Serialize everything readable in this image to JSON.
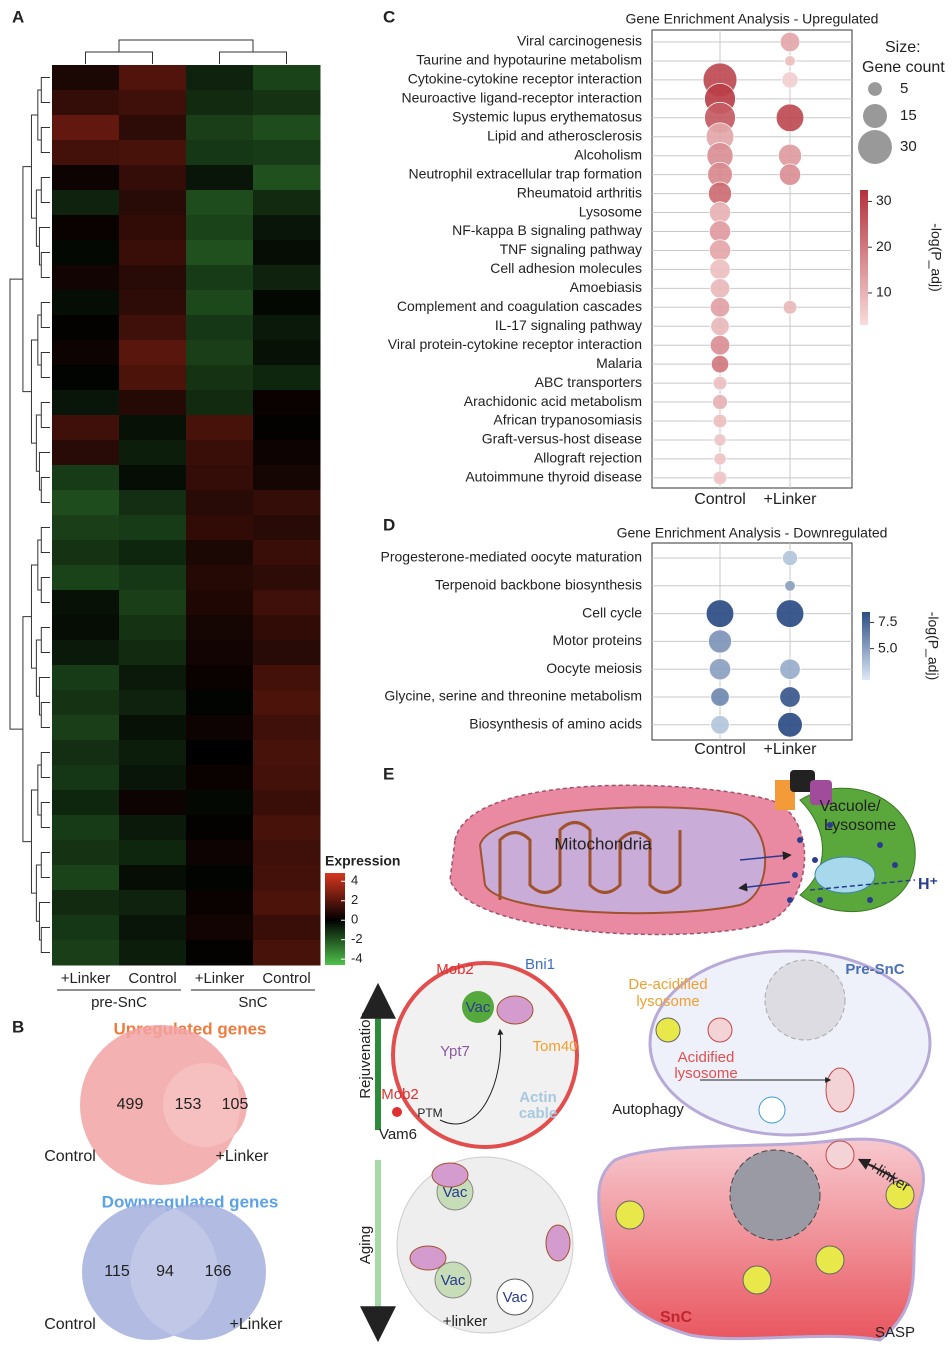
{
  "panel_labels": [
    "A",
    "B",
    "C",
    "D",
    "E"
  ],
  "chart_data": [
    {
      "type": "heatmap",
      "columns": [
        "+Linker",
        "Control",
        "+Linker",
        "Control"
      ],
      "groups": [
        "pre-SnC",
        "SnC"
      ],
      "legend_title": "Expression",
      "zlim": [
        -4.6,
        4.85
      ],
      "zticks": [
        4,
        2,
        0,
        -2,
        -4
      ],
      "colormap": [
        "#4fc24a",
        "#000000",
        "#d8361f"
      ],
      "values": [
        [
          0.6,
          1.8,
          -0.8,
          -1.6
        ],
        [
          1.2,
          1.4,
          -1.0,
          -1.2
        ],
        [
          2.2,
          1.0,
          -1.5,
          -1.8
        ],
        [
          1.5,
          1.6,
          -1.3,
          -1.4
        ],
        [
          0.3,
          1.2,
          -0.5,
          -1.9
        ],
        [
          -0.8,
          0.9,
          -1.8,
          -1.0
        ],
        [
          0.2,
          1.1,
          -1.6,
          -0.5
        ],
        [
          -0.2,
          1.3,
          -1.9,
          -0.3
        ],
        [
          0.4,
          0.9,
          -1.4,
          -0.8
        ],
        [
          -0.3,
          1.0,
          -1.7,
          -0.2
        ],
        [
          0.1,
          1.4,
          -1.3,
          -0.6
        ],
        [
          0.3,
          2.0,
          -1.5,
          -0.4
        ],
        [
          -0.1,
          1.7,
          -1.2,
          -0.9
        ],
        [
          -0.5,
          0.8,
          -1.0,
          0.2
        ],
        [
          1.4,
          -0.4,
          1.6,
          0.1
        ],
        [
          0.9,
          -0.7,
          1.3,
          0.3
        ],
        [
          -1.4,
          -0.3,
          1.2,
          0.5
        ],
        [
          -1.8,
          -1.1,
          0.9,
          1.2
        ],
        [
          -1.5,
          -1.4,
          1.1,
          0.9
        ],
        [
          -1.2,
          -0.9,
          0.6,
          1.3
        ],
        [
          -1.6,
          -1.3,
          0.8,
          1.0
        ],
        [
          -0.4,
          -1.5,
          0.7,
          1.4
        ],
        [
          -0.3,
          -1.2,
          0.5,
          1.1
        ],
        [
          -0.6,
          -1.0,
          0.4,
          0.9
        ],
        [
          -1.4,
          -0.6,
          0.2,
          1.5
        ],
        [
          -1.2,
          -0.8,
          -0.1,
          1.7
        ],
        [
          -1.5,
          -0.4,
          0.3,
          1.4
        ],
        [
          -1.1,
          -0.7,
          0.0,
          1.6
        ],
        [
          -1.3,
          -0.5,
          0.2,
          1.5
        ],
        [
          -0.9,
          0.3,
          -0.2,
          1.3
        ],
        [
          -1.4,
          -0.6,
          0.1,
          1.6
        ],
        [
          -1.2,
          -0.9,
          0.3,
          1.4
        ],
        [
          -1.6,
          -0.3,
          -0.1,
          1.5
        ],
        [
          -1.0,
          -0.8,
          0.2,
          1.7
        ],
        [
          -1.3,
          -0.5,
          0.4,
          1.3
        ],
        [
          -1.5,
          -0.7,
          0.1,
          1.6
        ]
      ]
    },
    {
      "type": "venn",
      "title": "Upregulated genes",
      "sets": [
        "Control",
        "+Linker"
      ],
      "values": [
        499,
        153,
        105
      ],
      "color": "#f2a3a3",
      "title_color": "#f07b3f"
    },
    {
      "type": "venn",
      "title": "Downregulated genes",
      "sets": [
        "Control",
        "+Linker"
      ],
      "values": [
        115,
        94,
        166
      ],
      "color": "#a4afdc",
      "title_color": "#5ba2e8"
    },
    {
      "type": "dot",
      "title": "Gene Enrichment Analysis - Upregulated",
      "categories": [
        "Viral carcinogenesis",
        "Taurine and hypotaurine metabolism",
        "Cytokine-cytokine receptor interaction",
        "Neuroactive ligand-receptor interaction",
        "Systemic lupus erythematosus",
        "Lipid and atherosclerosis",
        "Alcoholism",
        "Neutrophil extracellular trap formation",
        "Rheumatoid arthritis",
        "Lysosome",
        "NF-kappa B signaling pathway",
        "TNF signaling pathway",
        "Cell adhesion molecules",
        "Amoebiasis",
        "Complement and coagulation cascades",
        "IL-17 signaling pathway",
        "Viral protein-cytokine receptor interaction",
        "Malaria",
        "ABC transporters",
        "Arachidonic acid metabolism",
        "African trypanosomiasis",
        "Graft-versus-host disease",
        "Allograft rejection",
        "Autoimmune thyroid disease"
      ],
      "series": [
        {
          "name": "Control",
          "values": [
            null,
            null,
            28,
            30,
            25,
            12,
            16,
            17,
            22,
            10,
            14,
            12,
            8,
            9,
            13,
            9,
            16,
            20,
            8,
            10,
            8,
            7,
            7,
            7
          ],
          "sizes": [
            null,
            null,
            30,
            25,
            25,
            20,
            18,
            16,
            14,
            12,
            12,
            12,
            11,
            10,
            10,
            9,
            10,
            8,
            5,
            6,
            5,
            4,
            4,
            5
          ]
        },
        {
          "name": "+Linker",
          "values": [
            12,
            8,
            5,
            null,
            28,
            null,
            14,
            16,
            null,
            null,
            null,
            null,
            null,
            null,
            9,
            null,
            null,
            null,
            null,
            null,
            null,
            null,
            null,
            null
          ],
          "sizes": [
            10,
            3,
            7,
            null,
            20,
            null,
            14,
            12,
            null,
            null,
            null,
            null,
            null,
            null,
            5,
            null,
            null,
            null,
            null,
            null,
            null,
            null,
            null,
            null
          ]
        }
      ],
      "size_legend": {
        "title": "Size:",
        "subtitle": "Gene count",
        "ticks": [
          5,
          15,
          30
        ]
      },
      "colorbar": {
        "label": "-log(P_adj)",
        "lim": [
          3,
          32.5
        ],
        "ticks": [
          10,
          20,
          30
        ]
      },
      "colormap": [
        "#f8dcdc",
        "#b5303b"
      ]
    },
    {
      "type": "dot",
      "title": "Gene Enrichment Analysis - Downregulated",
      "categories": [
        "Progesterone-mediated oocyte maturation",
        "Terpenoid backbone biosynthesis",
        "Cell cycle",
        "Motor proteins",
        "Oocyte meiosis",
        "Glycine, serine and threonine metabolism",
        "Biosynthesis of amino acids"
      ],
      "series": [
        {
          "name": "Control",
          "values": [
            null,
            null,
            8.5,
            5.5,
            5,
            6,
            3.5
          ],
          "sizes": [
            null,
            null,
            20,
            14,
            12,
            9,
            9
          ]
        },
        {
          "name": "+Linker",
          "values": [
            3.5,
            5,
            8.5,
            null,
            4.5,
            8,
            8.5
          ],
          "sizes": [
            6,
            3,
            20,
            null,
            11,
            11,
            16
          ]
        }
      ],
      "colorbar": {
        "label": "-log(P_adj)",
        "lim": [
          2,
          8.5
        ],
        "ticks": [
          7.5,
          {
            "value": 5,
            "label": "5.0"
          }
        ]
      },
      "colormap": [
        "#dde9f6",
        "#2c4d85"
      ]
    }
  ],
  "diagram": {
    "mitochondria": "Mitochondria",
    "vacuole": [
      "Vacuole/",
      "Lysosome"
    ],
    "proton": "H⁺",
    "pre_snc": "Pre-SnC",
    "deacidified": [
      "De-acidified",
      "lysosome"
    ],
    "acidified": [
      "Acidified",
      "lysosome"
    ],
    "autophagy": "Autophagy",
    "linker_snc": "+linker",
    "snc": "SnC",
    "sasp": "SASP",
    "yeast": {
      "mob2_top": "Mob2",
      "bni1": "Bni1",
      "vac_top": "Vac",
      "ypt7": "Ypt7",
      "tom40": "Tom40",
      "mob2": "Mob2",
      "ptm": "PTM",
      "vam6": "Vam6",
      "actin": [
        "Actin",
        "cable"
      ],
      "rejuvenation": "Rejuvenation",
      "aging": "Aging",
      "vac_1": "Vac",
      "vac_2": "Vac",
      "vac_3": "Vac",
      "linker": "+linker"
    }
  }
}
